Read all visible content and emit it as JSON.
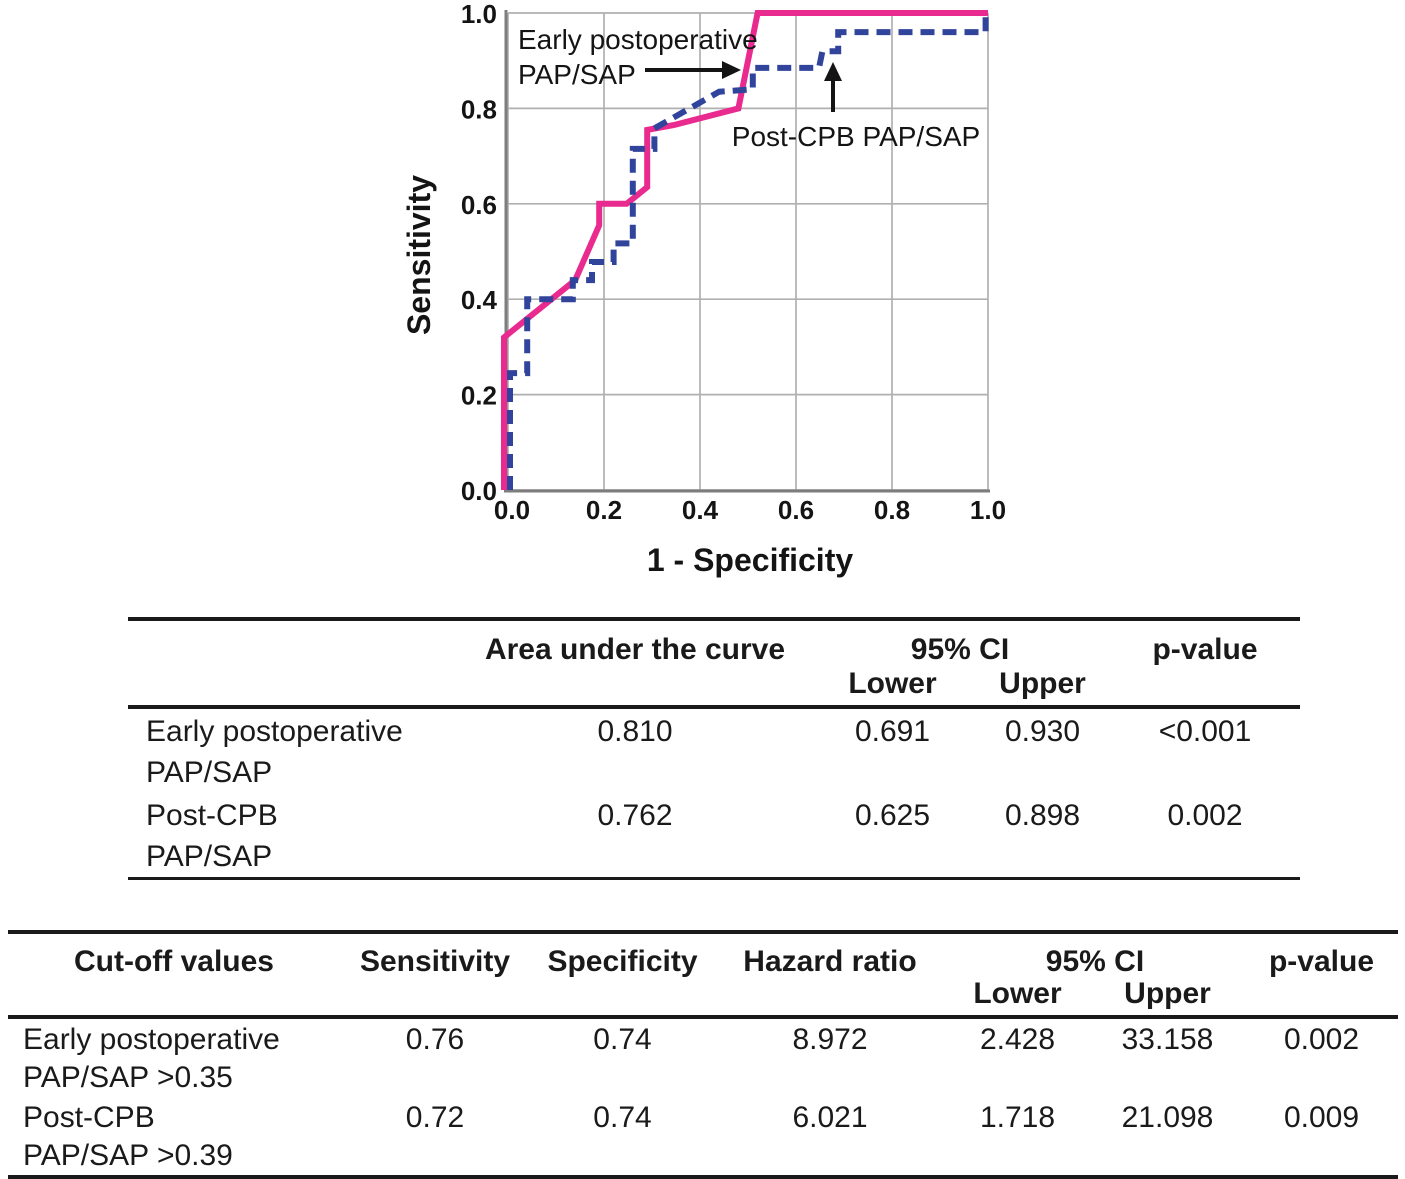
{
  "chart_data": {
    "type": "line",
    "subtype": "roc-curves",
    "title": "",
    "xlabel": "1 - Specificity",
    "ylabel": "Sensitivity",
    "xlim": [
      0.0,
      1.0
    ],
    "ylim": [
      0.0,
      1.0
    ],
    "xticks": [
      0.0,
      0.2,
      0.4,
      0.6,
      0.8,
      1.0
    ],
    "yticks": [
      0.0,
      0.2,
      0.4,
      0.6,
      0.8,
      1.0
    ],
    "grid": true,
    "legend_position": "none",
    "colors": {
      "early_postoperative_curve": "#e92a8e",
      "post_cpb_curve": "#31449c",
      "gridline": "#b0b0b0",
      "axis_line": "#7d7d7d",
      "annotation_text": "#141414"
    },
    "series": [
      {
        "name": "Early postoperative PAP/SAP",
        "style": "solid",
        "color": "#e92a8e",
        "points": [
          [
            0,
            0
          ],
          [
            0,
            0.32
          ],
          [
            0.14,
            0.44
          ],
          [
            0.19,
            0.555
          ],
          [
            0.19,
            0.6
          ],
          [
            0.247,
            0.6
          ],
          [
            0.29,
            0.635
          ],
          [
            0.29,
            0.755
          ],
          [
            0.345,
            0.765
          ],
          [
            0.48,
            0.8
          ],
          [
            0.52,
            1.0
          ],
          [
            1.0,
            1.0
          ]
        ]
      },
      {
        "name": "Post-CPB PAP/SAP",
        "style": "dashed",
        "color": "#31449c",
        "points": [
          [
            0,
            0
          ],
          [
            0,
            0.245
          ],
          [
            0.04,
            0.245
          ],
          [
            0.04,
            0.4
          ],
          [
            0.135,
            0.4
          ],
          [
            0.135,
            0.44
          ],
          [
            0.175,
            0.44
          ],
          [
            0.175,
            0.478
          ],
          [
            0.22,
            0.478
          ],
          [
            0.22,
            0.517
          ],
          [
            0.26,
            0.517
          ],
          [
            0.26,
            0.715
          ],
          [
            0.305,
            0.715
          ],
          [
            0.305,
            0.758
          ],
          [
            0.44,
            0.835
          ],
          [
            0.51,
            0.84
          ],
          [
            0.51,
            0.885
          ],
          [
            0.648,
            0.885
          ],
          [
            0.655,
            0.92
          ],
          [
            0.688,
            0.92
          ],
          [
            0.688,
            0.96
          ],
          [
            0.995,
            0.96
          ],
          [
            0.995,
            1.0
          ]
        ]
      }
    ],
    "annotations": [
      {
        "text_lines": [
          "Early postoperative",
          "PAP/SAP"
        ],
        "arrow": "right",
        "points_to": "Early postoperative PAP/SAP curve"
      },
      {
        "text_lines": [
          "Post-CPB PAP/SAP"
        ],
        "arrow": "up",
        "points_to": "Post-CPB PAP/SAP curve"
      }
    ]
  },
  "auc_table": {
    "headers": {
      "auc": "Area under the curve",
      "ci": "95% CI",
      "lower": "Lower",
      "upper": "Upper",
      "p": "p-value"
    },
    "rows": [
      {
        "label_line1": "Early postoperative",
        "label_line2": "PAP/SAP",
        "auc": "0.810",
        "lower": "0.691",
        "upper": "0.930",
        "p": "<0.001"
      },
      {
        "label_line1": "Post-CPB",
        "label_line2": "PAP/SAP",
        "auc": "0.762",
        "lower": "0.625",
        "upper": "0.898",
        "p": "0.002"
      }
    ]
  },
  "cutoff_table": {
    "headers": {
      "cutoff": "Cut-off values",
      "sensitivity": "Sensitivity",
      "specificity": "Specificity",
      "hazard_ratio": "Hazard ratio",
      "ci": "95% CI",
      "lower": "Lower",
      "upper": "Upper",
      "p": "p-value"
    },
    "rows": [
      {
        "label_line1": "Early postoperative",
        "label_line2": "PAP/SAP >0.35",
        "sensitivity": "0.76",
        "specificity": "0.74",
        "hazard_ratio": "8.972",
        "lower": "2.428",
        "upper": "33.158",
        "p": "0.002"
      },
      {
        "label_line1": "Post-CPB",
        "label_line2": "PAP/SAP >0.39",
        "sensitivity": "0.72",
        "specificity": "0.74",
        "hazard_ratio": "6.021",
        "lower": "1.718",
        "upper": "21.098",
        "p": "0.009"
      }
    ]
  }
}
